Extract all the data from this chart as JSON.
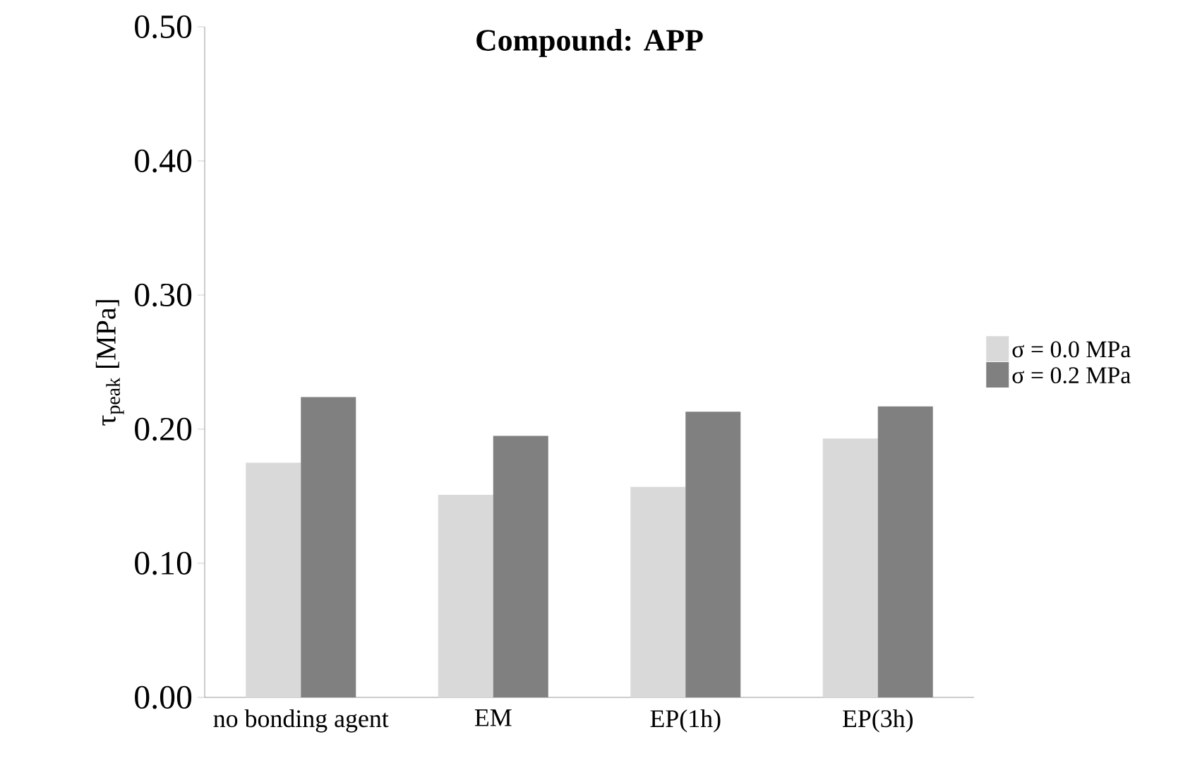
{
  "chart_data": {
    "type": "bar",
    "title": "Compound: APP",
    "ylabel": "τ$_{peak}$ [MPa]",
    "categories": [
      "no bonding agent",
      "EM",
      "EP(1h)",
      "EP(3h)"
    ],
    "series": [
      {
        "name": "σ = 0.0 MPa",
        "color": "#d9d9d9",
        "values": [
          0.175,
          0.151,
          0.157,
          0.193
        ]
      },
      {
        "name": "σ = 0.2 MPa",
        "color": "#808080",
        "values": [
          0.224,
          0.195,
          0.213,
          0.217
        ]
      }
    ],
    "ylim": [
      0,
      0.5
    ],
    "yticks": [
      {
        "value": 0,
        "label": "0.00"
      },
      {
        "value": 0.1,
        "label": "0.10"
      },
      {
        "value": 0.2,
        "label": "0.20"
      },
      {
        "value": 0.3,
        "label": "0.30"
      },
      {
        "value": 0.4,
        "label": "0.40"
      },
      {
        "value": 0.5,
        "label": "0.50"
      }
    ],
    "grid": false,
    "legend": "right"
  }
}
